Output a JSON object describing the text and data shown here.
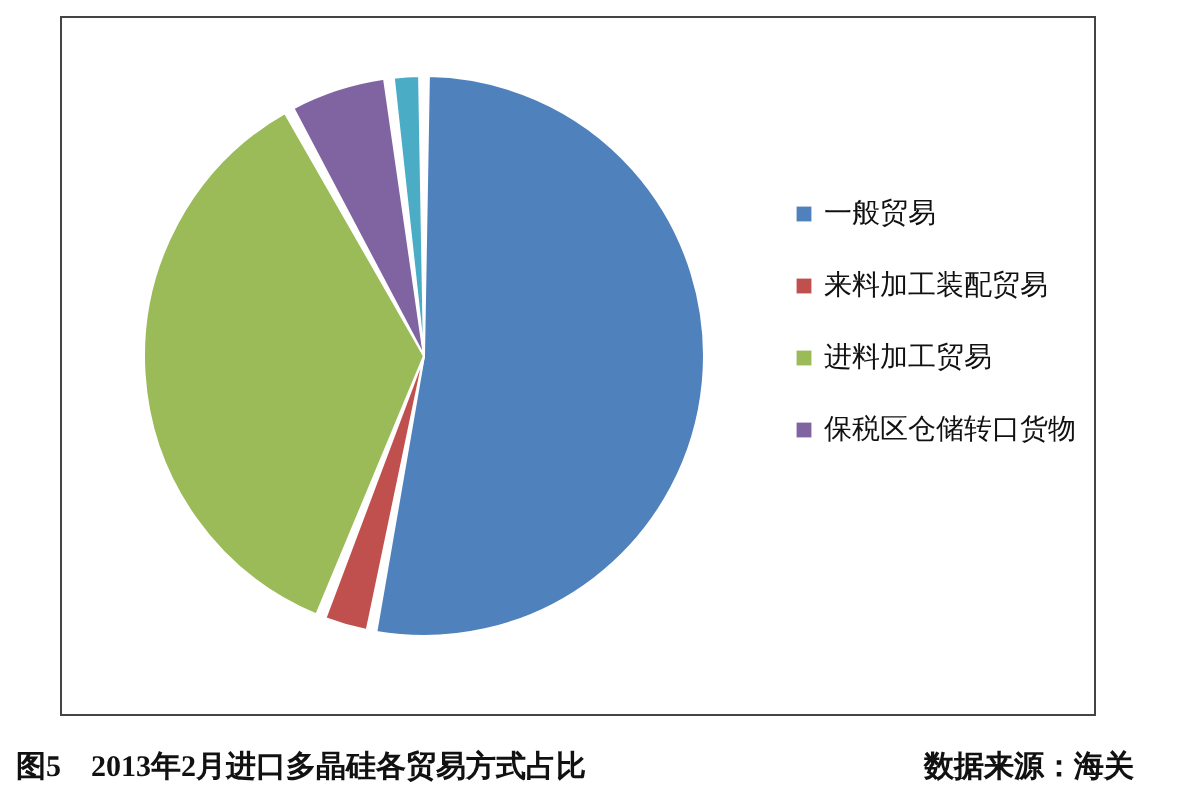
{
  "chart_data": {
    "type": "pie",
    "title": "图5　2013年2月进口多晶硅各贸易方式占比",
    "categories": [
      "一般贸易",
      "来料加工装配贸易",
      "进料加工贸易",
      "保税区仓储转口货物",
      null
    ],
    "values": [
      53,
      3,
      36,
      6,
      2
    ],
    "colors": [
      "#4f81bd",
      "#c0504d",
      "#9bbb59",
      "#8064a2",
      "#4bacc6"
    ],
    "legend": "right",
    "annotations": [
      "数据来源：海关"
    ]
  }
}
